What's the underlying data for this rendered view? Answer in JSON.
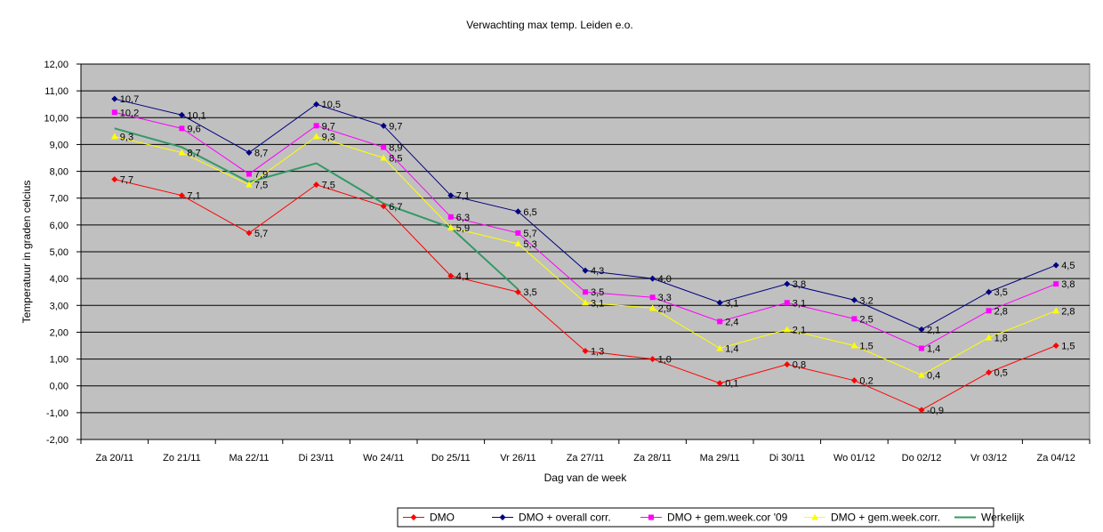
{
  "chart_data": {
    "type": "line",
    "title": "Verwachting max temp. Leiden e.o.",
    "xlabel": "Dag van de week",
    "ylabel": "Temperatuur in graden celcius",
    "ylim": [
      -2,
      12
    ],
    "y_step": 1,
    "y_tick_labels": [
      "-2,00",
      "-1,00",
      "0,00",
      "1,00",
      "2,00",
      "3,00",
      "4,00",
      "5,00",
      "6,00",
      "7,00",
      "8,00",
      "9,00",
      "10,00",
      "11,00",
      "12,00"
    ],
    "grid": true,
    "legend_position": "bottom-right",
    "plot_background": "#c0c0c0",
    "categories": [
      "Za 20/11",
      "Zo 21/11",
      "Ma 22/11",
      "Di 23/11",
      "Wo 24/11",
      "Do 25/11",
      "Vr 26/11",
      "Za 27/11",
      "Za 28/11",
      "Ma 29/11",
      "Di 30/11",
      "Wo 01/12",
      "Do 02/12",
      "Vr 03/12",
      "Za 04/12"
    ],
    "series": [
      {
        "name": "DMO",
        "color": "#ff0000",
        "marker": "diamond",
        "values": [
          7.7,
          7.1,
          5.7,
          7.5,
          6.7,
          4.1,
          3.5,
          1.3,
          1.0,
          0.1,
          0.8,
          0.2,
          -0.9,
          0.5,
          1.5
        ],
        "labels": [
          "7,7",
          "7,1",
          "5,7",
          "7,5",
          "6,7",
          "4,1",
          "3,5",
          "1,3",
          "1,0",
          "0,1",
          "0,8",
          "0,2",
          "-0,9",
          "0,5",
          "1,5"
        ]
      },
      {
        "name": "DMO + overall corr.",
        "color": "#000080",
        "marker": "diamond",
        "values": [
          10.7,
          10.1,
          8.7,
          10.5,
          9.7,
          7.1,
          6.5,
          4.3,
          4.0,
          3.1,
          3.8,
          3.2,
          2.1,
          3.5,
          4.5
        ],
        "labels": [
          "10,7",
          "10,1",
          "8,7",
          "10,5",
          "9,7",
          "7,1",
          "6,5",
          "4,3",
          "4,0",
          "3,1",
          "3,8",
          "3,2",
          "2,1",
          "3,5",
          "4,5"
        ]
      },
      {
        "name": "DMO + gem.week.cor '09",
        "color": "#ff00ff",
        "marker": "square",
        "values": [
          10.2,
          9.6,
          7.9,
          9.7,
          8.9,
          6.3,
          5.7,
          3.5,
          3.3,
          2.4,
          3.1,
          2.5,
          1.4,
          2.8,
          3.8
        ],
        "labels": [
          "10,2",
          "9,6",
          "7,9",
          "9,7",
          "8,9",
          "6,3",
          "5,7",
          "3,5",
          "3,3",
          "2,4",
          "3,1",
          "2,5",
          "1,4",
          "2,8",
          "3,8"
        ]
      },
      {
        "name": "DMO + gem.week.corr.",
        "color": "#ffff00",
        "marker": "triangle",
        "values": [
          9.3,
          8.7,
          7.5,
          9.3,
          8.5,
          5.9,
          5.3,
          3.1,
          2.9,
          1.4,
          2.1,
          1.5,
          0.4,
          1.8,
          2.8
        ],
        "labels": [
          "9,3",
          "8,7",
          "7,5",
          "9,3",
          "8,5",
          "5,9",
          "5,3",
          "3,1",
          "2,9",
          "1,4",
          "2,1",
          "1,5",
          "0,4",
          "1,8",
          "2,8"
        ]
      },
      {
        "name": "Werkelijk",
        "color": "#339966",
        "marker": "none",
        "values": [
          9.6,
          8.9,
          7.6,
          8.3,
          6.8,
          5.9,
          3.6,
          null,
          null,
          null,
          null,
          null,
          null,
          null,
          null
        ],
        "labels": []
      }
    ]
  }
}
